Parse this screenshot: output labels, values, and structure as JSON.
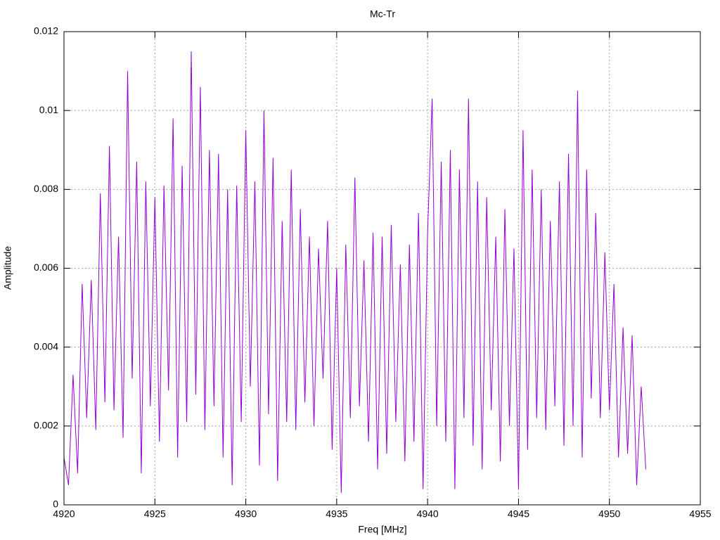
{
  "chart_data": {
    "type": "line",
    "title": "Mc-Tr",
    "xlabel": "Freq [MHz]",
    "ylabel": "Amplitude",
    "color": "#9400d3",
    "grid": true,
    "xlim": [
      4920,
      4955
    ],
    "xticks": [
      4920,
      4925,
      4930,
      4935,
      4940,
      4945,
      4950,
      4955
    ],
    "ylim": [
      0,
      0.012
    ],
    "yticks": [
      0,
      0.002,
      0.004,
      0.006,
      0.008,
      0.01,
      0.012
    ],
    "x": [
      4920,
      4920.25,
      4920.5,
      4920.75,
      4921,
      4921.25,
      4921.5,
      4921.75,
      4922,
      4922.25,
      4922.5,
      4922.75,
      4923,
      4923.25,
      4923.5,
      4923.75,
      4924,
      4924.25,
      4924.5,
      4924.75,
      4925,
      4925.25,
      4925.5,
      4925.75,
      4926,
      4926.25,
      4926.5,
      4926.75,
      4927,
      4927.25,
      4927.5,
      4927.75,
      4928,
      4928.25,
      4928.5,
      4928.75,
      4929,
      4929.25,
      4929.5,
      4929.75,
      4930,
      4930.25,
      4930.5,
      4930.75,
      4931,
      4931.25,
      4931.5,
      4931.75,
      4932,
      4932.25,
      4932.5,
      4932.75,
      4933,
      4933.25,
      4933.5,
      4933.75,
      4934,
      4934.25,
      4934.5,
      4934.75,
      4935,
      4935.25,
      4935.5,
      4935.75,
      4936,
      4936.25,
      4936.5,
      4936.75,
      4937,
      4937.25,
      4937.5,
      4937.75,
      4938,
      4938.25,
      4938.5,
      4938.75,
      4939,
      4939.25,
      4939.5,
      4939.75,
      4940,
      4940.25,
      4940.5,
      4940.75,
      4941,
      4941.25,
      4941.5,
      4941.75,
      4942,
      4942.25,
      4942.5,
      4942.75,
      4943,
      4943.25,
      4943.5,
      4943.75,
      4944,
      4944.25,
      4944.5,
      4944.75,
      4945,
      4945.25,
      4945.5,
      4945.75,
      4946,
      4946.25,
      4946.5,
      4946.75,
      4947,
      4947.25,
      4947.5,
      4947.75,
      4948,
      4948.25,
      4948.5,
      4948.75,
      4949,
      4949.25,
      4949.5,
      4949.75,
      4950,
      4950.25,
      4950.5,
      4950.75,
      4951,
      4951.25,
      4951.5,
      4951.75,
      4952
    ],
    "values": [
      0.0012,
      0.0005,
      0.0033,
      0.0008,
      0.0056,
      0.0022,
      0.0057,
      0.0019,
      0.0079,
      0.0026,
      0.0091,
      0.0024,
      0.0068,
      0.0017,
      0.011,
      0.0032,
      0.0087,
      0.0008,
      0.0082,
      0.0025,
      0.0078,
      0.0016,
      0.0081,
      0.0029,
      0.0098,
      0.0012,
      0.0086,
      0.0021,
      0.0115,
      0.0028,
      0.0106,
      0.0019,
      0.009,
      0.0025,
      0.0089,
      0.0012,
      0.008,
      0.0005,
      0.0081,
      0.0021,
      0.0095,
      0.003,
      0.0082,
      0.001,
      0.01,
      0.0023,
      0.0088,
      0.0006,
      0.0072,
      0.0021,
      0.0085,
      0.0019,
      0.0075,
      0.0026,
      0.0068,
      0.002,
      0.0065,
      0.0032,
      0.0072,
      0.0014,
      0.006,
      0.0003,
      0.0066,
      0.0022,
      0.0083,
      0.0025,
      0.0062,
      0.0016,
      0.0069,
      0.0009,
      0.0068,
      0.0013,
      0.0071,
      0.0021,
      0.0061,
      0.0011,
      0.0066,
      0.0016,
      0.0074,
      0.0004,
      0.0069,
      0.0103,
      0.002,
      0.0087,
      0.0016,
      0.009,
      0.0004,
      0.0085,
      0.0022,
      0.0103,
      0.0015,
      0.0082,
      0.0009,
      0.0078,
      0.0024,
      0.0068,
      0.0011,
      0.0075,
      0.002,
      0.0065,
      0.0004,
      0.0095,
      0.0014,
      0.0085,
      0.0022,
      0.008,
      0.0019,
      0.0072,
      0.0025,
      0.0082,
      0.0015,
      0.0089,
      0.002,
      0.0105,
      0.0012,
      0.0085,
      0.0027,
      0.0074,
      0.0022,
      0.0064,
      0.0024,
      0.0056,
      0.0012,
      0.0045,
      0.0013,
      0.0043,
      0.0005,
      0.003,
      0.0009
    ]
  }
}
